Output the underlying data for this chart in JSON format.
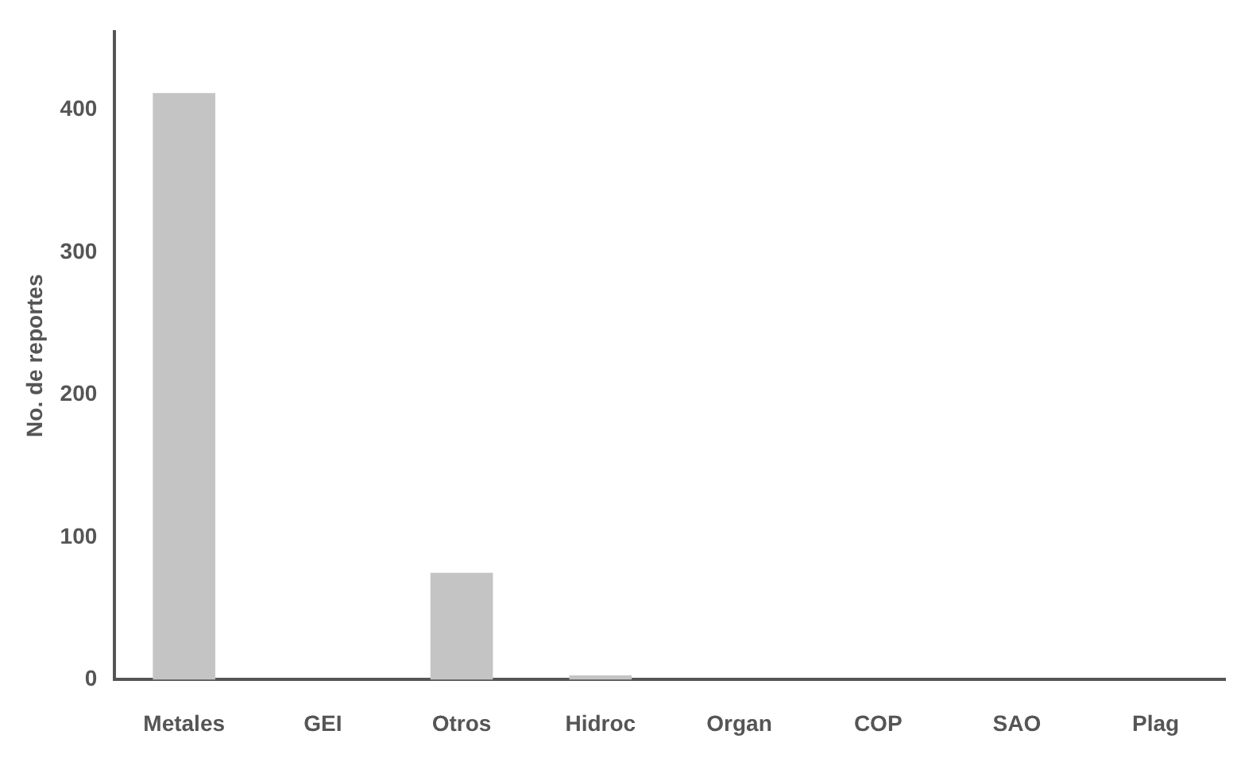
{
  "chart_data": {
    "type": "bar",
    "ylabel": "No. de reportes",
    "categories": [
      "Metales",
      "GEI",
      "Otros",
      "Hidroc",
      "Organ",
      "COP",
      "SAO",
      "Plag"
    ],
    "values": [
      412,
      0,
      75,
      3,
      0,
      0,
      0,
      0
    ],
    "color": "#c4c4c4",
    "ylim": [
      0,
      455
    ],
    "yticks": [
      0,
      100,
      200,
      300,
      400
    ],
    "grid": false,
    "legend": false
  }
}
